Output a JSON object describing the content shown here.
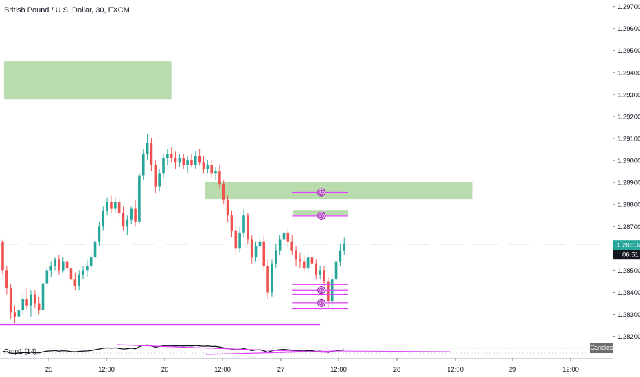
{
  "header": {
    "symbol_title": "British Pound / U.S. Dollar, 30, FXCM"
  },
  "price_axis": {
    "ticks": [
      "1.29700",
      "1.29600",
      "1.29500",
      "1.29400",
      "1.29300",
      "1.29200",
      "1.29100",
      "1.29000",
      "1.28900",
      "1.28800",
      "1.28700",
      "1.28500",
      "1.28400",
      "1.28300",
      "1.28200"
    ],
    "last_price_label": "1.28616",
    "countdown_label": "06:51",
    "last_price_color": "#26a69a",
    "countdown_color": "#131722"
  },
  "time_axis": {
    "ticks": [
      "25",
      "12:00",
      "26",
      "12:00",
      "27",
      "12:00",
      "28",
      "12:00",
      "29",
      "12:00"
    ]
  },
  "oscillator": {
    "label": "Prop1 (14)",
    "mode_button": "Candles"
  },
  "colors": {
    "bull": "#26a69a",
    "bear": "#ef5350",
    "zone_fill": "#b9dcae",
    "magenta": "#e040fb",
    "target_purple": "#9c27b0",
    "last_price_line": "#26a69a"
  },
  "chart_data": {
    "type": "candlestick",
    "title": "British Pound / U.S. Dollar, 30, FXCM",
    "ylim": [
      1.2818,
      1.2973
    ],
    "last_price": 1.28616,
    "candles": [
      [
        1.2863,
        1.2864,
        1.2848,
        1.285
      ],
      [
        1.285,
        1.2852,
        1.2839,
        1.2842
      ],
      [
        1.2842,
        1.2844,
        1.2828,
        1.2831
      ],
      [
        1.2831,
        1.2834,
        1.2826,
        1.2829
      ],
      [
        1.2829,
        1.2835,
        1.2826,
        1.2832
      ],
      [
        1.2832,
        1.2839,
        1.283,
        1.2837
      ],
      [
        1.2837,
        1.2842,
        1.2832,
        1.2834
      ],
      [
        1.2834,
        1.2841,
        1.2829,
        1.2839
      ],
      [
        1.2839,
        1.2841,
        1.2833,
        1.2835
      ],
      [
        1.2835,
        1.2838,
        1.283,
        1.2832
      ],
      [
        1.2832,
        1.2845,
        1.2832,
        1.2844
      ],
      [
        1.2844,
        1.2852,
        1.2842,
        1.285
      ],
      [
        1.285,
        1.2854,
        1.2847,
        1.2852
      ],
      [
        1.2852,
        1.2856,
        1.285,
        1.2855
      ],
      [
        1.2855,
        1.2857,
        1.2848,
        1.285
      ],
      [
        1.285,
        1.2856,
        1.2849,
        1.2854
      ],
      [
        1.2854,
        1.2856,
        1.285,
        1.2851
      ],
      [
        1.2851,
        1.2853,
        1.2843,
        1.2846
      ],
      [
        1.2846,
        1.2849,
        1.2841,
        1.2843
      ],
      [
        1.2843,
        1.285,
        1.2841,
        1.2848
      ],
      [
        1.2848,
        1.2852,
        1.2846,
        1.285
      ],
      [
        1.285,
        1.2855,
        1.2847,
        1.2852
      ],
      [
        1.2852,
        1.2858,
        1.285,
        1.2856
      ],
      [
        1.2856,
        1.2865,
        1.2855,
        1.2863
      ],
      [
        1.2863,
        1.2872,
        1.2861,
        1.287
      ],
      [
        1.287,
        1.2879,
        1.2868,
        1.2877
      ],
      [
        1.2877,
        1.2883,
        1.2875,
        1.2881
      ],
      [
        1.2881,
        1.2884,
        1.2876,
        1.2878
      ],
      [
        1.2878,
        1.2883,
        1.2876,
        1.2881
      ],
      [
        1.2881,
        1.2883,
        1.2874,
        1.2876
      ],
      [
        1.2876,
        1.2879,
        1.2868,
        1.287
      ],
      [
        1.287,
        1.2875,
        1.2866,
        1.2873
      ],
      [
        1.2873,
        1.2879,
        1.2871,
        1.2878
      ],
      [
        1.2878,
        1.2882,
        1.287,
        1.2872
      ],
      [
        1.2872,
        1.2894,
        1.2871,
        1.2893
      ],
      [
        1.2893,
        1.2905,
        1.2891,
        1.2903
      ],
      [
        1.2903,
        1.2912,
        1.29,
        1.2908
      ],
      [
        1.2908,
        1.291,
        1.2895,
        1.2898
      ],
      [
        1.2898,
        1.29,
        1.2885,
        1.2888
      ],
      [
        1.2888,
        1.2896,
        1.2886,
        1.2894
      ],
      [
        1.2894,
        1.2903,
        1.2892,
        1.2901
      ],
      [
        1.2901,
        1.2905,
        1.2898,
        1.2903
      ],
      [
        1.2903,
        1.2906,
        1.2899,
        1.2901
      ],
      [
        1.2901,
        1.2904,
        1.2896,
        1.2899
      ],
      [
        1.2899,
        1.2903,
        1.2897,
        1.2901
      ],
      [
        1.2901,
        1.2903,
        1.2896,
        1.2898
      ],
      [
        1.2898,
        1.2902,
        1.2894,
        1.29
      ],
      [
        1.29,
        1.2903,
        1.2897,
        1.2898
      ],
      [
        1.2898,
        1.2904,
        1.2896,
        1.2902
      ],
      [
        1.2902,
        1.2905,
        1.2898,
        1.2899
      ],
      [
        1.2899,
        1.2902,
        1.2894,
        1.2896
      ],
      [
        1.2896,
        1.29,
        1.2894,
        1.2898
      ],
      [
        1.2898,
        1.29,
        1.2892,
        1.2894
      ],
      [
        1.2894,
        1.2897,
        1.2891,
        1.2895
      ],
      [
        1.2895,
        1.2898,
        1.2887,
        1.2889
      ],
      [
        1.2889,
        1.2891,
        1.288,
        1.2882
      ],
      [
        1.2882,
        1.2884,
        1.2872,
        1.2875
      ],
      [
        1.2875,
        1.2877,
        1.2865,
        1.2868
      ],
      [
        1.2868,
        1.287,
        1.2857,
        1.286
      ],
      [
        1.286,
        1.287,
        1.2858,
        1.2867
      ],
      [
        1.2867,
        1.2878,
        1.2865,
        1.2875
      ],
      [
        1.2875,
        1.2876,
        1.2862,
        1.2864
      ],
      [
        1.2864,
        1.2866,
        1.2853,
        1.2856
      ],
      [
        1.2856,
        1.2863,
        1.2854,
        1.2861
      ],
      [
        1.2861,
        1.2866,
        1.2858,
        1.2863
      ],
      [
        1.2863,
        1.2866,
        1.285,
        1.2852
      ],
      [
        1.2852,
        1.2855,
        1.2837,
        1.284
      ],
      [
        1.284,
        1.2855,
        1.2838,
        1.2853
      ],
      [
        1.2853,
        1.2862,
        1.2851,
        1.2859
      ],
      [
        1.2859,
        1.2866,
        1.2857,
        1.2864
      ],
      [
        1.2864,
        1.287,
        1.2861,
        1.2867
      ],
      [
        1.2867,
        1.2869,
        1.286,
        1.2863
      ],
      [
        1.2863,
        1.2866,
        1.2857,
        1.2859
      ],
      [
        1.2859,
        1.2861,
        1.2852,
        1.2855
      ],
      [
        1.2855,
        1.2858,
        1.2851,
        1.2854
      ],
      [
        1.2854,
        1.2857,
        1.2849,
        1.2851
      ],
      [
        1.2851,
        1.2858,
        1.2849,
        1.2856
      ],
      [
        1.2856,
        1.2859,
        1.2851,
        1.2853
      ],
      [
        1.2853,
        1.2855,
        1.2846,
        1.2848
      ],
      [
        1.2848,
        1.2852,
        1.2846,
        1.285
      ],
      [
        1.285,
        1.2852,
        1.2843,
        1.2845
      ],
      [
        1.2845,
        1.2847,
        1.2833,
        1.2836
      ],
      [
        1.2836,
        1.2848,
        1.2834,
        1.2846
      ],
      [
        1.2846,
        1.2856,
        1.2844,
        1.2854
      ],
      [
        1.2854,
        1.2862,
        1.2852,
        1.2859
      ],
      [
        1.2859,
        1.2865,
        1.2857,
        1.2862
      ]
    ],
    "zones": [
      {
        "from": 1,
        "to": 42,
        "y1": 1.29452,
        "y2": 1.29277
      },
      {
        "from": 51,
        "to": 117,
        "y1": 1.28903,
        "y2": 1.28822
      },
      {
        "from": 73,
        "to": 86,
        "y1": 1.28772,
        "y2": 1.2875
      }
    ],
    "levels": [
      {
        "price": 1.28855,
        "from": 72,
        "to": 86,
        "target": true
      },
      {
        "price": 1.28748,
        "from": 72,
        "to": 86,
        "target": true
      },
      {
        "price": 1.28435,
        "from": 72,
        "to": 86,
        "target": false
      },
      {
        "price": 1.2841,
        "from": 72,
        "to": 86,
        "target": true
      },
      {
        "price": 1.2839,
        "from": 72,
        "to": 86,
        "target": false
      },
      {
        "price": 1.28352,
        "from": 72,
        "to": 86,
        "target": true
      },
      {
        "price": 1.28325,
        "from": 72,
        "to": 86,
        "target": false
      },
      {
        "price": 1.28253,
        "from": -5,
        "to": 79,
        "target": false
      }
    ]
  }
}
